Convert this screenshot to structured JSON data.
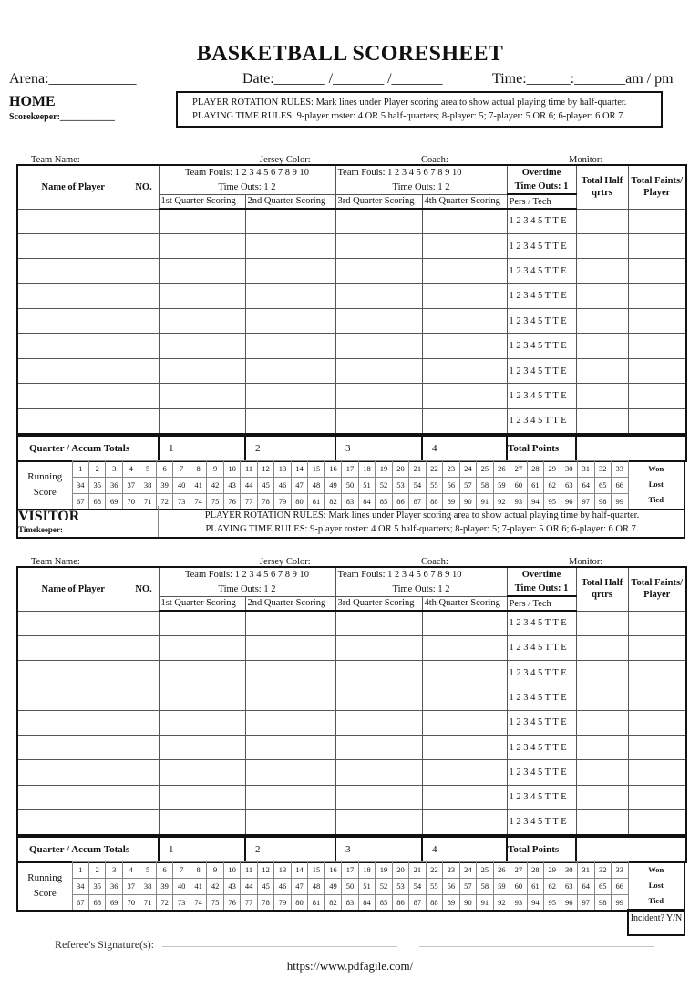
{
  "header": {
    "title": "BASKETBALL SCORESHEET",
    "arena": "Arena:____________",
    "date": "Date:_______ /_______ /_______",
    "time": "Time:______:_______am / pm"
  },
  "home": {
    "label": "HOME",
    "role": "Scorekeeper:____________"
  },
  "visitor": {
    "label": "VISITOR",
    "role": "Timekeeper:"
  },
  "rules": {
    "rotation": "PLAYER ROTATION RULES: Mark lines under Player scoring area to show actual playing time by half-quarter.",
    "playing_time": "PLAYING TIME RULES: 9-player roster:  4 OR 5 half-quarters;  8-player: 5;  7-player: 5 OR 6;  6-player: 6 OR 7."
  },
  "team_meta": {
    "team_name": "Team Name:",
    "jersey_color": "Jersey Color:",
    "coach": "Coach:",
    "monitor": "Monitor:"
  },
  "table": {
    "name_of_player": "Name of Player",
    "no": "NO.",
    "team_fouls": "Team Fouls: 1 2 3 4 5 6 7 8 9 10",
    "time_outs": "Time Outs: 1 2",
    "quarters": [
      "1st Quarter Scoring",
      "2nd Quarter Scoring",
      "3rd Quarter Scoring",
      "4th Quarter Scoring"
    ],
    "overtime": "Overtime",
    "ot_time_outs": "Time Outs: 1",
    "pers_tech": "Pers / Tech",
    "total_half": "Total Half qrtrs",
    "total_faints": "Total Faints/ Player",
    "fouls_row": "1 2 3 4 5 T T E",
    "player_rows": 9,
    "totals_label": "Quarter / Accum Totals",
    "totals_quarters": [
      "1",
      "2",
      "3",
      "4"
    ],
    "total_points": "Total Points"
  },
  "running": {
    "label": "Running Score",
    "rows": [
      [
        1,
        2,
        3,
        4,
        5,
        6,
        7,
        8,
        9,
        10,
        11,
        12,
        13,
        14,
        15,
        16,
        17,
        18,
        19,
        20,
        21,
        22,
        23,
        24,
        25,
        26,
        27,
        28,
        29,
        30,
        31,
        32,
        33
      ],
      [
        34,
        35,
        36,
        37,
        38,
        39,
        40,
        41,
        42,
        43,
        44,
        45,
        46,
        47,
        48,
        49,
        50,
        51,
        52,
        53,
        54,
        55,
        56,
        57,
        58,
        59,
        60,
        61,
        62,
        63,
        64,
        65,
        66
      ],
      [
        67,
        68,
        69,
        70,
        71,
        72,
        73,
        74,
        75,
        76,
        77,
        78,
        79,
        80,
        81,
        82,
        83,
        84,
        85,
        86,
        87,
        88,
        89,
        90,
        91,
        92,
        93,
        94,
        95,
        96,
        97,
        98,
        99
      ]
    ],
    "outcomes": [
      "Won",
      "Lost",
      "Tied"
    ]
  },
  "footer": {
    "incident": "Incident? Y/N",
    "referee": "Referee's Signature(s):",
    "signature_line_1": "___________________________________________",
    "signature_line_2": "___________________________________________",
    "url": "https://www.pdfagile.com/"
  }
}
